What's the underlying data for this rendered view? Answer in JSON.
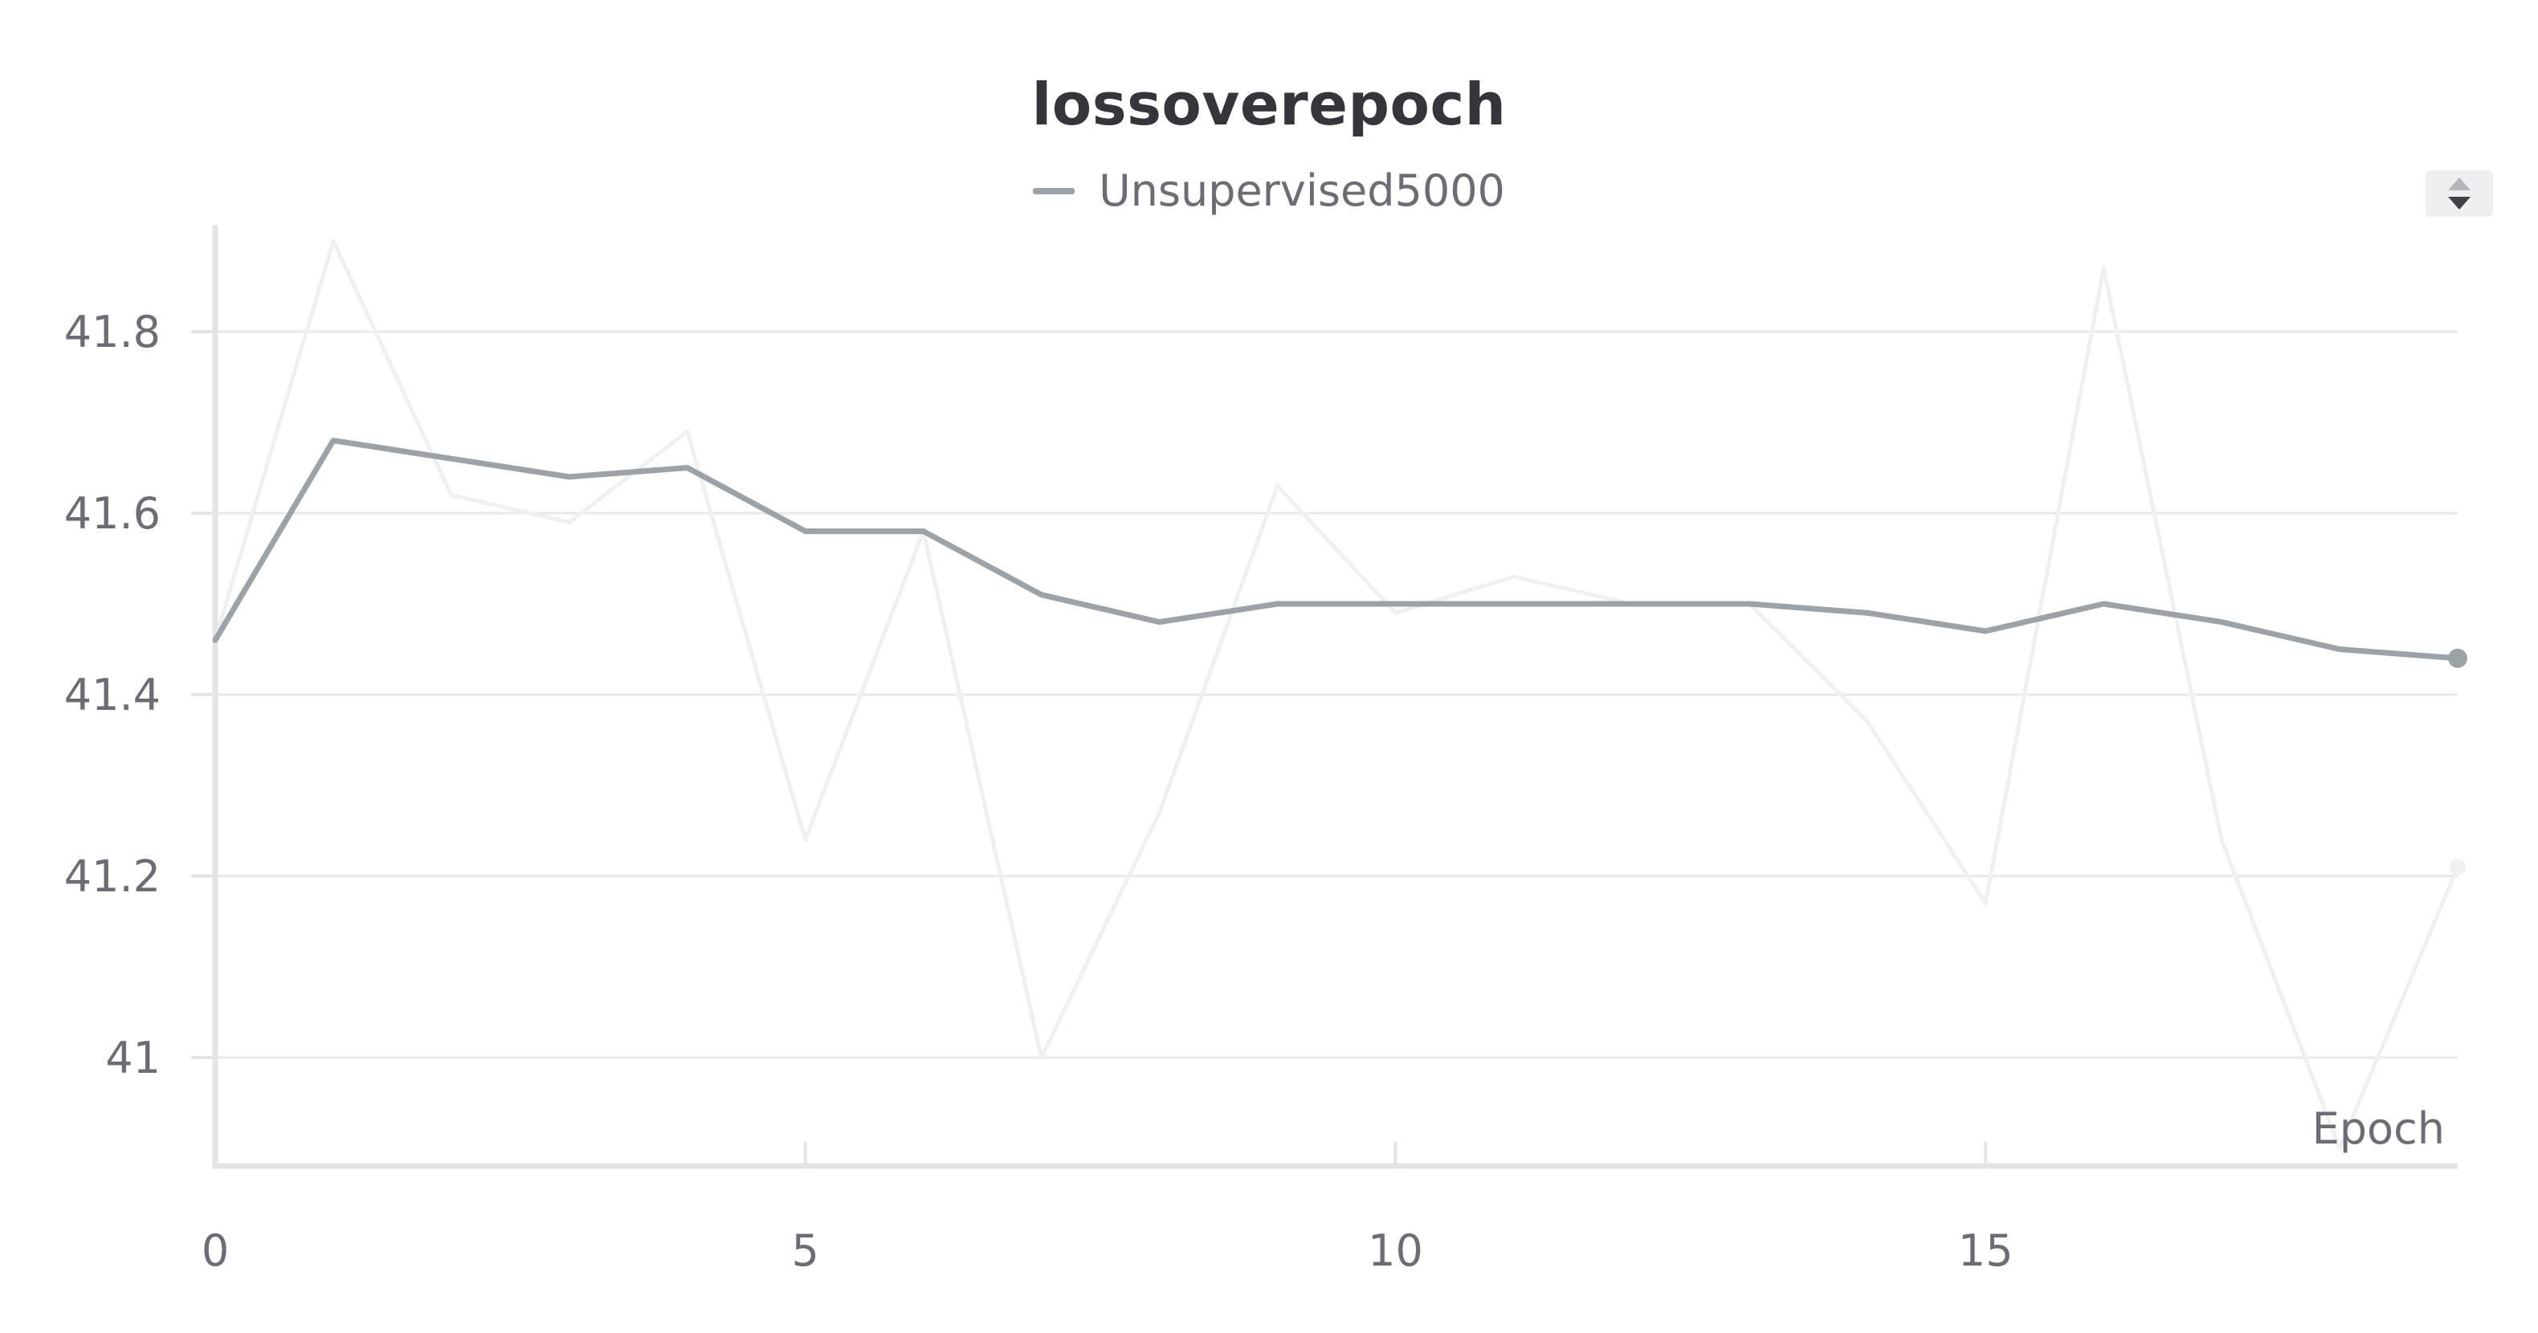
{
  "chart_data": {
    "type": "line",
    "title": "lossoverepoch",
    "xlabel": "Epoch",
    "ylabel": "",
    "xlim": [
      0,
      19
    ],
    "ylim": [
      40.9,
      41.9
    ],
    "x_ticks": [
      0,
      5,
      10,
      15
    ],
    "x_tick_labels": [
      "0",
      "5",
      "10",
      "15"
    ],
    "y_ticks": [
      41.0,
      41.2,
      41.4,
      41.6,
      41.8
    ],
    "y_tick_labels": [
      "41",
      "41.2",
      "41.4",
      "41.6",
      "41.8"
    ],
    "grid": "horizontal",
    "legend_position": "top-center",
    "x": [
      0,
      1,
      2,
      3,
      4,
      5,
      6,
      7,
      8,
      9,
      10,
      11,
      12,
      13,
      14,
      15,
      16,
      17,
      18,
      19
    ],
    "series": [
      {
        "name": "Unsupervised5000",
        "color": "#9ba2a8",
        "values": [
          41.46,
          41.68,
          41.66,
          41.64,
          41.65,
          41.58,
          41.58,
          41.51,
          41.48,
          41.5,
          41.5,
          41.5,
          41.5,
          41.5,
          41.49,
          41.47,
          41.5,
          41.48,
          41.45,
          41.44
        ],
        "raw_color": "#eef0f1",
        "raw_values": [
          41.46,
          41.9,
          41.62,
          41.59,
          41.69,
          41.24,
          41.58,
          41.0,
          41.27,
          41.63,
          41.49,
          41.53,
          41.5,
          41.5,
          41.37,
          41.17,
          41.87,
          41.24,
          40.9,
          41.21
        ]
      }
    ]
  },
  "ui": {
    "sort_icon": "sort-updown-icon"
  }
}
